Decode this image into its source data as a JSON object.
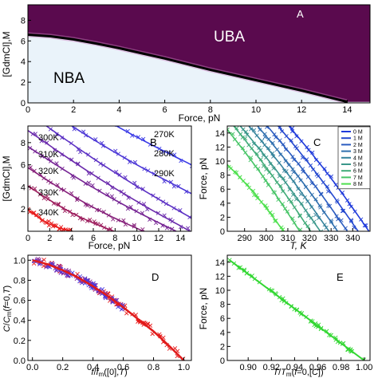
{
  "chart_data": [
    {
      "panel": "A",
      "type": "heatmap",
      "panel_label": "A",
      "xlabel": "Force, pN",
      "ylabel": "[GdmCl],M",
      "xlim": [
        0,
        15
      ],
      "ylim": [
        0,
        9.5
      ],
      "xticks": [
        0,
        2,
        4,
        6,
        8,
        10,
        12,
        14
      ],
      "yticks": [
        0,
        2,
        4,
        6,
        8
      ],
      "region_labels": [
        "UBA",
        "NBA"
      ],
      "colors": {
        "unfolded": "#5a0a4e",
        "native": "#eaf3fa"
      },
      "boundary": {
        "x": [
          0,
          1,
          2,
          3,
          4,
          5,
          6,
          7,
          8,
          9,
          10,
          11,
          12,
          13,
          14
        ],
        "y": [
          6.6,
          6.45,
          6.15,
          5.75,
          5.3,
          4.8,
          4.3,
          3.75,
          3.2,
          2.7,
          2.2,
          1.7,
          1.2,
          0.65,
          0.1
        ]
      }
    },
    {
      "panel": "B",
      "type": "line",
      "panel_label": "B",
      "xlabel": "Force, pN",
      "ylabel": "[GdmCl],M",
      "xlim": [
        0,
        15
      ],
      "ylim": [
        0,
        9.5
      ],
      "xticks": [
        0,
        2,
        4,
        6,
        8,
        10,
        12,
        14
      ],
      "yticks": [
        2,
        4,
        6,
        8
      ],
      "series": [
        {
          "name": "270K",
          "color": "#3a3ae6",
          "x": [
            0,
            15
          ],
          "y": [
            14.4,
            6.0
          ]
        },
        {
          "name": "280K",
          "color": "#4b36d6",
          "x": [
            0,
            15
          ],
          "y": [
            12.1,
            3.4
          ]
        },
        {
          "name": "290K",
          "color": "#5c31c4",
          "x": [
            0,
            15
          ],
          "y": [
            10.7,
            1.2
          ]
        },
        {
          "name": "300K",
          "color": "#6a2aac",
          "x": [
            0,
            14.9
          ],
          "y": [
            9.1,
            0
          ]
        },
        {
          "name": "310K",
          "color": "#762594",
          "x": [
            0,
            13.6
          ],
          "y": [
            7.65,
            0
          ]
        },
        {
          "name": "320K",
          "color": "#86207a",
          "x": [
            0,
            10.6
          ],
          "y": [
            5.75,
            0
          ]
        },
        {
          "name": "330K",
          "color": "#9c1c5c",
          "x": [
            0,
            7.9
          ],
          "y": [
            4.1,
            0
          ]
        },
        {
          "name": "340K",
          "color": "#e81b1b",
          "x": [
            0,
            4.1
          ],
          "y": [
            1.95,
            0
          ]
        }
      ]
    },
    {
      "panel": "C",
      "type": "line",
      "panel_label": "C",
      "xlabel": "T, K",
      "ylabel": "Force, pN",
      "xlim": [
        282,
        348
      ],
      "ylim": [
        0,
        15
      ],
      "xticks": [
        290,
        300,
        310,
        320,
        330,
        340
      ],
      "yticks": [
        0,
        2,
        4,
        6,
        8,
        10,
        12,
        14
      ],
      "legend_position": "top-right",
      "series": [
        {
          "name": "0 M",
          "color": "#1f3adb",
          "x": [
            310.5,
            347.5
          ],
          "y": [
            15,
            0
          ]
        },
        {
          "name": "1 M",
          "color": "#2448cf",
          "x": [
            305.5,
            342.5
          ],
          "y": [
            15,
            0
          ]
        },
        {
          "name": "2 M",
          "color": "#2a5bbf",
          "x": [
            300.5,
            337.5
          ],
          "y": [
            15,
            0
          ]
        },
        {
          "name": "3 M",
          "color": "#2f6fae",
          "x": [
            296,
            333
          ],
          "y": [
            15,
            0
          ]
        },
        {
          "name": "4 M",
          "color": "#35839c",
          "x": [
            292,
            329
          ],
          "y": [
            15,
            0
          ]
        },
        {
          "name": "5 M",
          "color": "#3a978a",
          "x": [
            288,
            325
          ],
          "y": [
            15,
            0
          ]
        },
        {
          "name": "6 M",
          "color": "#40ab78",
          "x": [
            285,
            320.5
          ],
          "y": [
            15,
            0
          ]
        },
        {
          "name": "7 M",
          "color": "#46c466",
          "x": [
            282,
            315.5
          ],
          "y": [
            14.5,
            0
          ]
        },
        {
          "name": "8 M",
          "color": "#4ee04e",
          "x": [
            282,
            308
          ],
          "y": [
            9.5,
            0
          ]
        }
      ]
    },
    {
      "panel": "D",
      "type": "scatter",
      "panel_label": "D",
      "xlabel": "f/f_m([0],T)",
      "ylabel": "C/C_m(f=0,T)",
      "xlim": [
        -0.03,
        1.05
      ],
      "ylim": [
        0,
        1.05
      ],
      "xticks": [
        0.0,
        0.2,
        0.4,
        0.6,
        0.8,
        1.0
      ],
      "yticks": [
        0.0,
        0.2,
        0.4,
        0.6,
        0.8,
        1.0
      ],
      "fit": {
        "color": "#e01a1a",
        "x": [
          0,
          0.1,
          0.2,
          0.3,
          0.4,
          0.5,
          0.6,
          0.7,
          0.8,
          0.9,
          1.0
        ],
        "y": [
          1.0,
          0.96,
          0.9,
          0.83,
          0.74,
          0.64,
          0.53,
          0.41,
          0.29,
          0.15,
          0.0
        ]
      },
      "scatter_colors": [
        "#e81b1b",
        "#8a2a9a",
        "#4a3ae0"
      ]
    },
    {
      "panel": "E",
      "type": "scatter",
      "panel_label": "E",
      "xlabel": "T/T_m(f=0,[C])",
      "ylabel": "Force, pN",
      "xlim": [
        0.882,
        1.005
      ],
      "ylim": [
        0,
        15
      ],
      "xticks": [
        0.9,
        0.92,
        0.94,
        0.96,
        0.98,
        1.0
      ],
      "xtick_labels": [
        "0.90",
        "0.92",
        "0.94",
        "0.96",
        "0.98",
        "1.00"
      ],
      "yticks": [
        0,
        2,
        4,
        6,
        8,
        10,
        12,
        14
      ],
      "fit": {
        "color": "#33d733",
        "x": [
          0.884,
          1.0
        ],
        "y": [
          14.3,
          0
        ]
      }
    }
  ]
}
